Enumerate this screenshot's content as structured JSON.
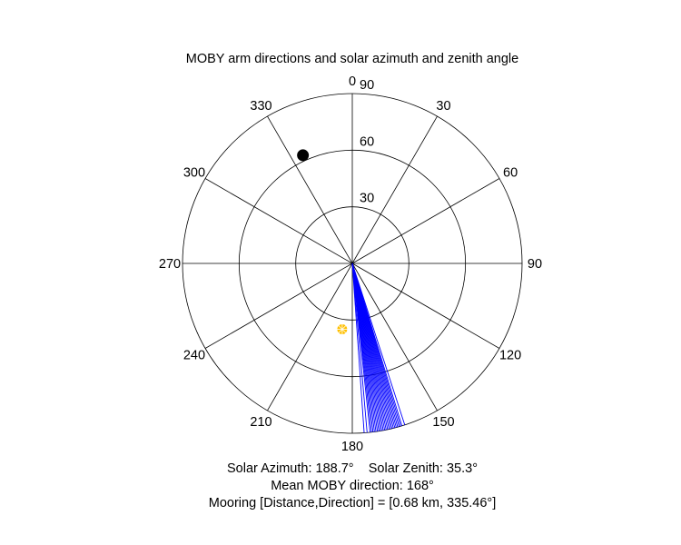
{
  "chart_data": {
    "type": "polar",
    "title": "MOBY arm directions and solar azimuth and zenith angle",
    "theta_zero": "top",
    "theta_direction": "clockwise",
    "theta_ticks": [
      0,
      30,
      60,
      90,
      120,
      150,
      180,
      210,
      240,
      270,
      300,
      330
    ],
    "theta_tick_labels": [
      "0",
      "30",
      "60",
      "90",
      "120",
      "150",
      "180",
      "210",
      "240",
      "270",
      "300",
      "330"
    ],
    "r_ticks": [
      30,
      60,
      90
    ],
    "r_tick_labels": [
      "30",
      "60",
      "90"
    ],
    "r_max": 90,
    "grid": true,
    "series": [
      {
        "marker": "lines",
        "color": "#0000ff",
        "r": 90,
        "theta": [
          162,
          163,
          163.5,
          164,
          164.5,
          165,
          165.5,
          166,
          166.5,
          167,
          167.5,
          168,
          168.5,
          169,
          169.5,
          170,
          170.5,
          171,
          171.5,
          172,
          172.5,
          173,
          173.5,
          174,
          175,
          176
        ]
      },
      {
        "marker": "filled-circle",
        "color": "#000000",
        "theta": 335.46,
        "r": 63
      },
      {
        "marker": "asterisk",
        "color": "#ffc000",
        "theta": 188.7,
        "r": 35.3
      }
    ]
  },
  "info": {
    "solar_azimuth_label": "Solar Azimuth: 188.7°",
    "solar_zenith_label": "Solar Zenith: 35.3°",
    "mean_direction": "Mean MOBY direction: 168°",
    "mooring": "Mooring [Distance,Direction] = [0.68 km, 335.46°]"
  },
  "colors": {
    "grid": "#000000",
    "arms": "#0000ff",
    "sun": "#ffc000",
    "mooring": "#000000"
  }
}
